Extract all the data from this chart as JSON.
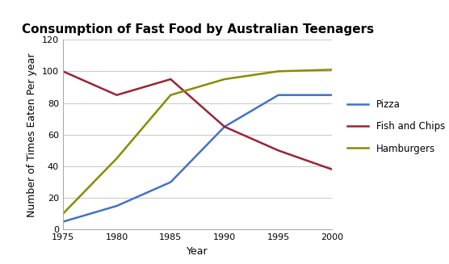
{
  "title": "Consumption of Fast Food by Australian Teenagers",
  "xlabel": "Year",
  "ylabel": "Number of Times Eaten Per year",
  "years": [
    1975,
    1980,
    1985,
    1990,
    1995,
    2000
  ],
  "pizza": [
    5,
    15,
    30,
    65,
    85,
    85
  ],
  "fish_and_chips": [
    100,
    85,
    95,
    65,
    50,
    38
  ],
  "hamburgers": [
    10,
    45,
    85,
    95,
    100,
    101
  ],
  "pizza_color": "#4472C4",
  "fish_color": "#9B2335",
  "hamburgers_color": "#8B8B00",
  "ylim": [
    0,
    120
  ],
  "yticks": [
    0,
    20,
    40,
    60,
    80,
    100,
    120
  ],
  "xticks": [
    1975,
    1980,
    1985,
    1990,
    1995,
    2000
  ],
  "linewidth": 1.8,
  "background_color": "#FFFFFF",
  "legend_labels": [
    "Pizza",
    "Fish and Chips",
    "Hamburgers"
  ],
  "title_fontsize": 11,
  "axis_fontsize": 9,
  "tick_fontsize": 8
}
